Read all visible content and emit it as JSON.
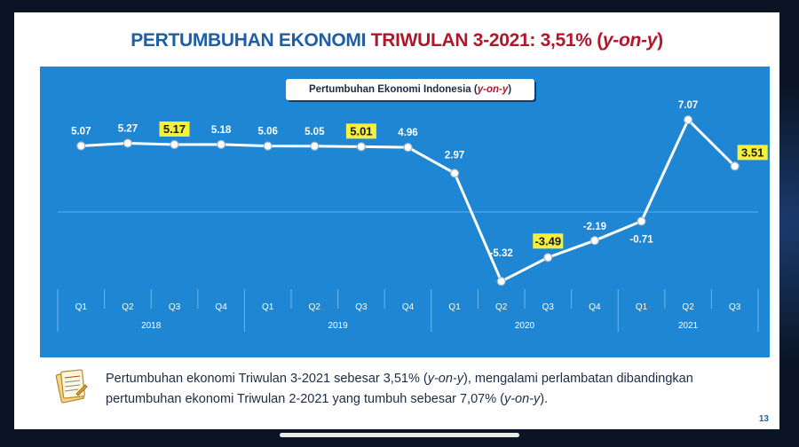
{
  "slide": {
    "title_part1": "PERTUMBUHAN EKONOMI ",
    "title_part2": "TRIWULAN 3-2021: 3,51% (",
    "title_part3": "y-on-y",
    "title_part4": ")",
    "subtitle_main": "Pertumbuhan Ekonomi Indonesia (",
    "subtitle_italic": "y-on-y",
    "subtitle_end": ")",
    "note_part1": "Pertumbuhan ekonomi Triwulan 3-2021 sebesar 3,51%  (",
    "note_italic1": "y-on-y",
    "note_part2": "), mengalami perlambatan dibandingkan pertumbuhan ekonomi Triwulan 2-2021 yang tumbuh sebesar 7,07% (",
    "note_italic2": "y-on-y",
    "note_part3": ").",
    "page_number": "13"
  },
  "colors": {
    "panel": "#1f86d4",
    "line": "#ffffff",
    "highlight": "#f5f03a",
    "title_blue": "#1d5fa6",
    "title_red": "#b0172a"
  },
  "chart_data": {
    "type": "line",
    "title": "Pertumbuhan Ekonomi Indonesia (y-on-y)",
    "categories": [
      "Q1",
      "Q2",
      "Q3",
      "Q4",
      "Q1",
      "Q2",
      "Q3",
      "Q4",
      "Q1",
      "Q2",
      "Q3",
      "Q4",
      "Q1",
      "Q2",
      "Q3"
    ],
    "year_groups": [
      {
        "label": "2018",
        "count": 4
      },
      {
        "label": "2019",
        "count": 4
      },
      {
        "label": "2020",
        "count": 4
      },
      {
        "label": "2021",
        "count": 3
      }
    ],
    "series": [
      {
        "values": [
          5.07,
          5.27,
          5.17,
          5.18,
          5.06,
          5.05,
          5.01,
          4.96,
          2.97,
          -5.32,
          -3.49,
          -2.19,
          -0.71,
          7.07,
          3.51
        ],
        "labels": [
          "5.07",
          "5.27",
          "5.17",
          "5.18",
          "5.06",
          "5.05",
          "5.01",
          "4.96",
          "2.97",
          "-5.32",
          "-3.49",
          "-2.19",
          "-0.71",
          "7.07",
          "3.51"
        ],
        "highlighted": [
          2,
          6,
          10,
          14
        ]
      }
    ],
    "ylim": [
      -6,
      8
    ],
    "zero_line": true
  }
}
